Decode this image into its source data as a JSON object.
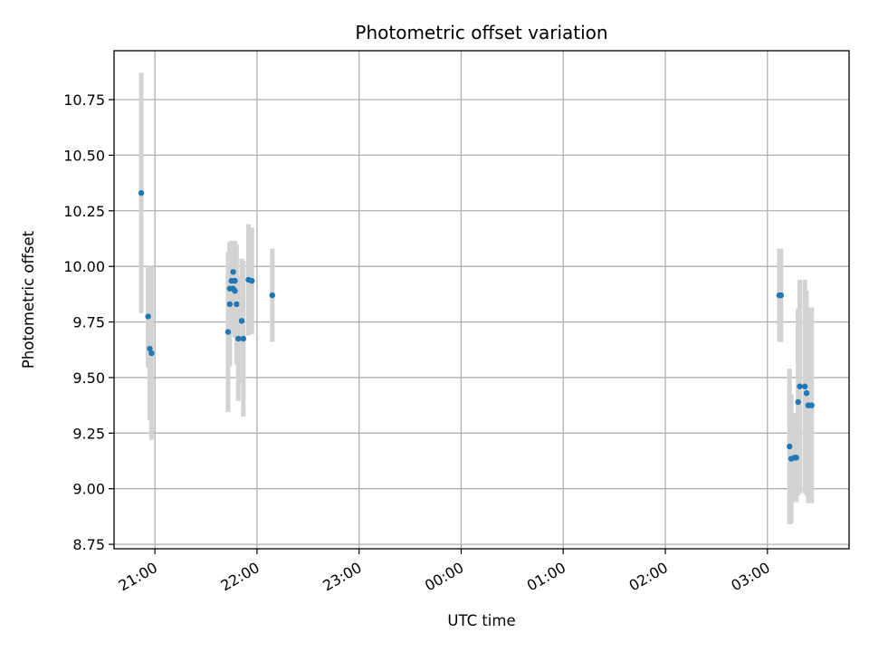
{
  "chart_data": {
    "type": "scatter",
    "title": "Photometric offset variation",
    "xlabel": "UTC time",
    "ylabel": "Photometric offset",
    "x_axis_kind": "time",
    "x_start_hour": 20.6,
    "xlim": [
      "20:37",
      "03:48 (+1 day)"
    ],
    "xlim_hours": [
      20.6,
      27.8
    ],
    "ylim": [
      8.73,
      10.97
    ],
    "x_ticks": [
      "21:00",
      "22:00",
      "23:00",
      "00:00",
      "01:00",
      "02:00",
      "03:00"
    ],
    "y_ticks": [
      "8.75",
      "9.00",
      "9.25",
      "9.50",
      "9.75",
      "10.00",
      "10.25",
      "10.50",
      "10.75"
    ],
    "grid": true,
    "marker_color": "#1f77b4",
    "errorbar_color": "#d3d3d3",
    "points": [
      {
        "time": "20:52",
        "y": 10.33,
        "err": 0.54
      },
      {
        "time": "20:56",
        "y": 9.775,
        "err": 0.23
      },
      {
        "time": "20:57",
        "y": 9.63,
        "err": 0.32
      },
      {
        "time": "20:58",
        "y": 9.61,
        "err": 0.39
      },
      {
        "time": "21:43",
        "y": 9.705,
        "err": 0.36
      },
      {
        "time": "21:44",
        "y": 9.83,
        "err": 0.28
      },
      {
        "time": "21:44",
        "y": 9.9,
        "err": 0.21
      },
      {
        "time": "21:45",
        "y": 9.935,
        "err": 0.18
      },
      {
        "time": "21:46",
        "y": 9.975,
        "err": 0.1
      },
      {
        "time": "21:46",
        "y": 9.9,
        "err": 0.21
      },
      {
        "time": "21:47",
        "y": 9.935,
        "err": 0.18
      },
      {
        "time": "21:47",
        "y": 9.89,
        "err": 0.21
      },
      {
        "time": "21:48",
        "y": 9.83,
        "err": 0.27
      },
      {
        "time": "21:49",
        "y": 9.675,
        "err": 0.28
      },
      {
        "time": "21:51",
        "y": 9.755,
        "err": 0.28
      },
      {
        "time": "21:52",
        "y": 9.675,
        "err": 0.35
      },
      {
        "time": "21:55",
        "y": 9.94,
        "err": 0.25
      },
      {
        "time": "21:57",
        "y": 9.935,
        "err": 0.24
      },
      {
        "time": "22:09",
        "y": 9.87,
        "err": 0.21
      },
      {
        "time": "03:07",
        "y": 9.87,
        "err": 0.21
      },
      {
        "time": "03:08",
        "y": 9.87,
        "err": 0.21
      },
      {
        "time": "03:13",
        "y": 9.19,
        "err": 0.35
      },
      {
        "time": "03:14",
        "y": 9.135,
        "err": 0.29
      },
      {
        "time": "03:16",
        "y": 9.14,
        "err": 0.2
      },
      {
        "time": "03:17",
        "y": 9.14,
        "err": 0.2
      },
      {
        "time": "03:18",
        "y": 9.39,
        "err": 0.42
      },
      {
        "time": "03:19",
        "y": 9.46,
        "err": 0.48
      },
      {
        "time": "03:22",
        "y": 9.46,
        "err": 0.48
      },
      {
        "time": "03:23",
        "y": 9.43,
        "err": 0.46
      },
      {
        "time": "03:24",
        "y": 9.375,
        "err": 0.44
      },
      {
        "time": "03:26",
        "y": 9.375,
        "err": 0.44
      }
    ]
  }
}
